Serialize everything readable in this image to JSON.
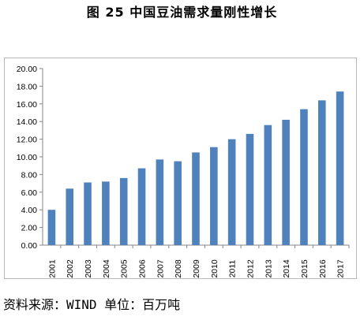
{
  "figure_title": "图 25  中国豆油需求量刚性增长",
  "source_note": "资料来源：WIND  单位：百万吨",
  "chart_data": {
    "type": "bar",
    "title": "",
    "xlabel": "",
    "ylabel": "",
    "categories": [
      "2001",
      "2002",
      "2003",
      "2004",
      "2005",
      "2006",
      "2007",
      "2008",
      "2009",
      "2010",
      "2011",
      "2012",
      "2013",
      "2014",
      "2015",
      "2016",
      "2017"
    ],
    "values": [
      4.0,
      6.4,
      7.1,
      7.2,
      7.6,
      8.7,
      9.7,
      9.5,
      10.5,
      11.1,
      12.0,
      12.6,
      13.6,
      14.2,
      15.4,
      16.4,
      17.4
    ],
    "ylim": [
      0,
      20
    ],
    "yticks": [
      "0.00",
      "2.00",
      "4.00",
      "6.00",
      "8.00",
      "10.00",
      "12.00",
      "14.00",
      "16.00",
      "18.00",
      "20.00"
    ],
    "bar_color": "#4f81bd",
    "grid": false,
    "legend": "none"
  }
}
